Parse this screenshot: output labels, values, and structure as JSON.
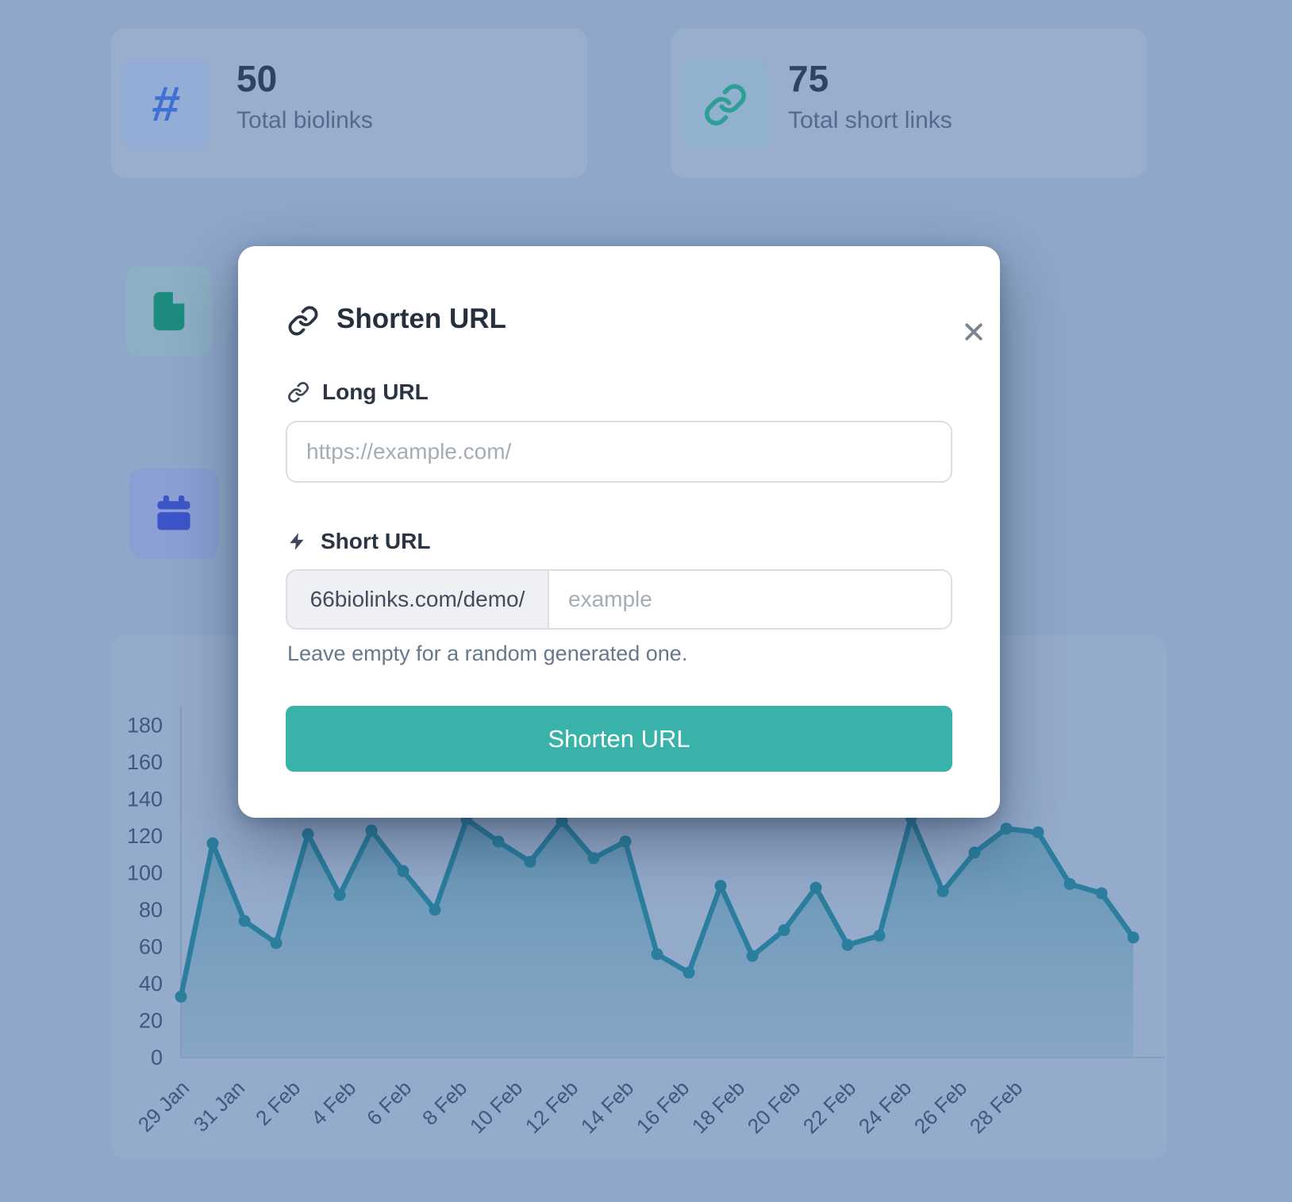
{
  "theme": {
    "page-bg": "#8fa7c8",
    "accent": "#39b3a9",
    "tile-hash-bg": "#93add7",
    "tile-link-bg": "#90b2cf",
    "tile-doc-bg": "#8cafc4",
    "tile-cal-bg": "#8a9fd3",
    "hash-icon": "#3e71d3",
    "link-icon": "#2f9e96",
    "doc-icon": "#1d8b80",
    "calendar-icon": "#3c55c8",
    "stat-number": "#2e4265",
    "stat-label": "#55698e"
  },
  "stats_cards": [
    {
      "icon": "hashtag-icon",
      "value": "50",
      "label": "Total biolinks"
    },
    {
      "icon": "link-icon",
      "value": "75",
      "label": "Total short links"
    }
  ],
  "modal": {
    "title": "Shorten URL",
    "long_url": {
      "label": "Long URL",
      "placeholder": "https://example.com/"
    },
    "short_url": {
      "label": "Short URL",
      "prefix": "66biolinks.com/demo/",
      "placeholder": "example",
      "helper": "Leave empty for a random generated one."
    },
    "submit_label": "Shorten URL",
    "accent_color": "#39b3a9"
  },
  "chart_data": {
    "type": "line",
    "title": "",
    "xlabel": "",
    "ylabel": "",
    "x": [
      "29 Jan",
      "30 Jan",
      "31 Jan",
      "1 Feb",
      "2 Feb",
      "3 Feb",
      "4 Feb",
      "5 Feb",
      "6 Feb",
      "7 Feb",
      "8 Feb",
      "9 Feb",
      "10 Feb",
      "11 Feb",
      "12 Feb",
      "13 Feb",
      "14 Feb",
      "15 Feb",
      "16 Feb",
      "17 Feb",
      "18 Feb",
      "19 Feb",
      "20 Feb",
      "21 Feb",
      "22 Feb",
      "23 Feb",
      "24 Feb",
      "25 Feb",
      "26 Feb",
      "27 Feb",
      "28 Feb"
    ],
    "values": [
      33,
      116,
      74,
      62,
      121,
      88,
      123,
      101,
      80,
      129,
      117,
      106,
      128,
      108,
      117,
      56,
      46,
      93,
      55,
      69,
      92,
      61,
      66,
      130,
      90,
      111,
      124,
      122,
      94,
      89,
      65
    ],
    "x_tick_labels": [
      "29 Jan",
      "31 Jan",
      "2 Feb",
      "4 Feb",
      "6 Feb",
      "8 Feb",
      "10 Feb",
      "12 Feb",
      "14 Feb",
      "16 Feb",
      "18 Feb",
      "20 Feb",
      "22 Feb",
      "24 Feb",
      "26 Feb",
      "28 Feb"
    ],
    "y_ticks": [
      0,
      20,
      40,
      60,
      80,
      100,
      120,
      140,
      160,
      180
    ],
    "ylim": [
      0,
      180
    ],
    "grid": false,
    "legend": false,
    "marker": "circle",
    "line_color": "#2b7e9e",
    "fill_top": "rgba(43,126,158,0.45)",
    "fill_bottom": "rgba(43,126,158,0.12)",
    "tick_color": "#41577c",
    "axis_color": "#7f97ba"
  }
}
